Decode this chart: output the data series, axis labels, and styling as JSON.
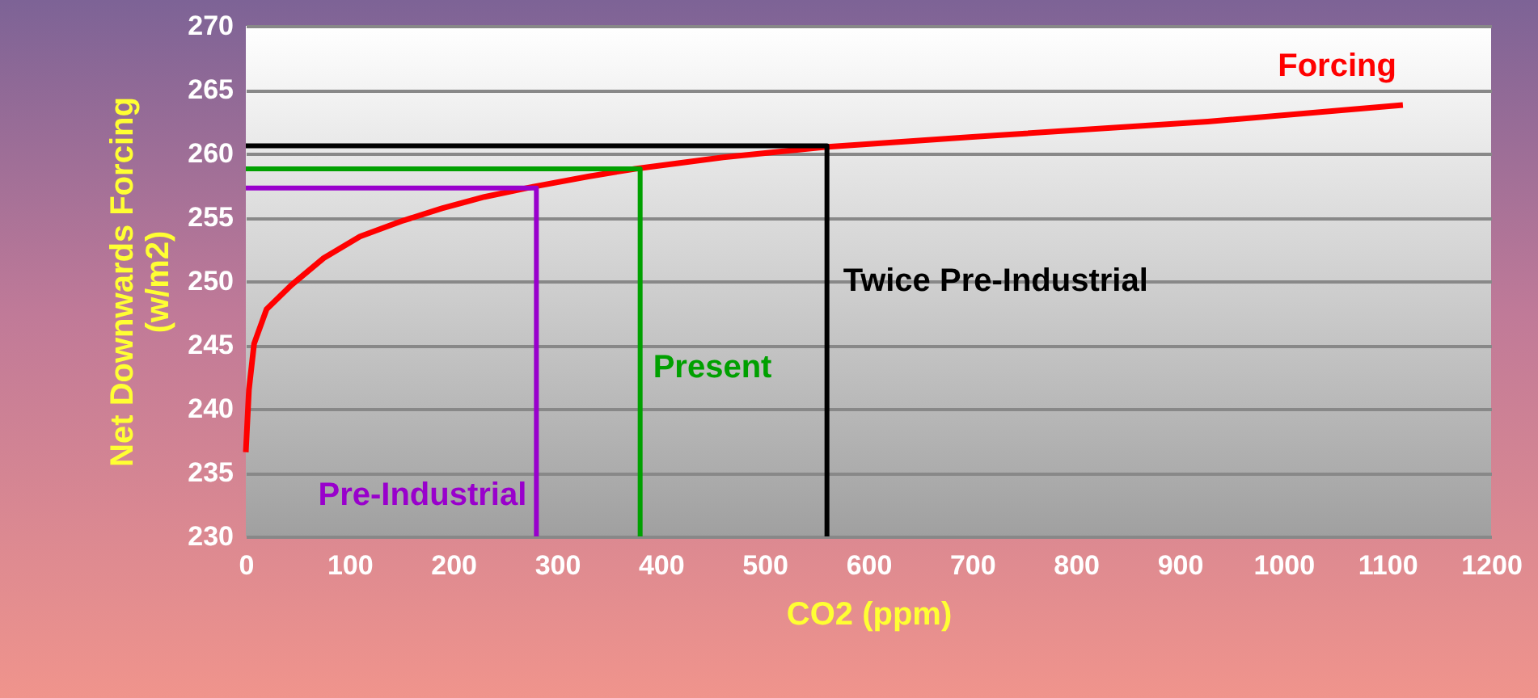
{
  "chart_data": {
    "type": "line",
    "xlabel": "CO2  (ppm)",
    "ylabel": "Net Downwards Forcing\n(w/m2)",
    "xlim": [
      0,
      1200
    ],
    "xticks": [
      0,
      100,
      200,
      300,
      400,
      500,
      600,
      700,
      800,
      900,
      1000,
      1100,
      1200
    ],
    "ylim": [
      230,
      270
    ],
    "yticks": [
      230,
      235,
      240,
      245,
      250,
      255,
      260,
      265,
      270
    ],
    "grid": "y",
    "marker": "none",
    "line_style": "solid",
    "series": [
      {
        "name": "Forcing",
        "color": "#ff0000",
        "x": [
          0,
          3,
          8,
          20,
          44,
          75,
          110,
          150,
          189,
          230,
          277,
          330,
          375,
          460,
          558,
          700,
          927,
          1115
        ],
        "values": [
          236.6,
          241.5,
          245.1,
          247.8,
          249.7,
          251.8,
          253.5,
          254.7,
          255.7,
          256.6,
          257.4,
          258.2,
          258.8,
          259.7,
          260.5,
          261.3,
          262.5,
          263.8
        ]
      },
      {
        "name": "Pre-Industrial",
        "color": "#9900cc",
        "x": [
          0,
          280,
          280
        ],
        "values": [
          257.3,
          257.3,
          230
        ]
      },
      {
        "name": "Present",
        "color": "#00a000",
        "x": [
          0,
          380,
          380
        ],
        "values": [
          258.8,
          258.8,
          230
        ]
      },
      {
        "name": "Twice Pre-Industrial",
        "color": "#000000",
        "x": [
          0,
          560,
          560
        ],
        "values": [
          260.6,
          260.6,
          230
        ]
      }
    ]
  }
}
